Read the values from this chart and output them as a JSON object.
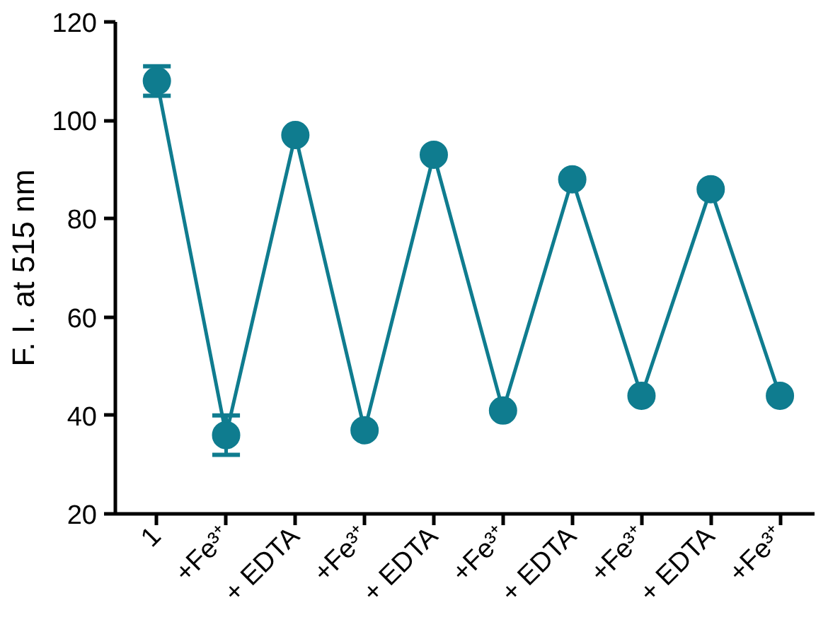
{
  "chart_data": {
    "type": "line",
    "ylabel": "F. I. at 515 nm",
    "categories": [
      "1",
      "+Fe³⁺",
      "+ EDTA",
      "+Fe³⁺",
      "+ EDTA",
      "+Fe³⁺",
      "+ EDTA",
      "+Fe³⁺",
      "+ EDTA",
      "+Fe³⁺"
    ],
    "series": [
      {
        "color": "#0f7c8f",
        "values": [
          108,
          36,
          97,
          37,
          93,
          41,
          88,
          44,
          86,
          44
        ],
        "errors": [
          [
            105,
            111
          ],
          [
            32,
            40
          ],
          null,
          null,
          null,
          null,
          null,
          null,
          null,
          null
        ]
      }
    ],
    "ylim": [
      20,
      120
    ],
    "yticks": [
      20,
      40,
      60,
      80,
      100,
      120
    ],
    "grid": false,
    "marker": "circle",
    "line_style": "solid"
  }
}
